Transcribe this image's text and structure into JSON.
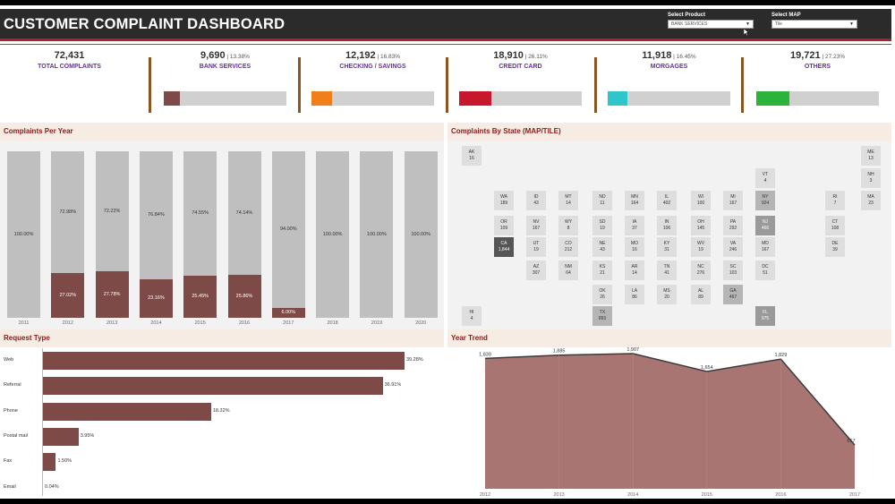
{
  "header": {
    "title": "CUSTOMER COMPLAINT DASHBOARD",
    "filters": [
      {
        "label": "Select Product",
        "value": "BANK SERVICES"
      },
      {
        "label": "Select MAP",
        "value": "Tile"
      }
    ]
  },
  "kpis": {
    "total": {
      "value": "72,431",
      "label": "TOTAL COMPLAINTS"
    },
    "items": [
      {
        "value": "9,690",
        "pct": "13.38%",
        "label": "BANK SERVICES",
        "color": "#7e4a47",
        "fill": 0.13
      },
      {
        "value": "12,192",
        "pct": "16.83%",
        "label": "CHECKING / SAVINGS",
        "color": "#f07e1a",
        "fill": 0.17
      },
      {
        "value": "18,910",
        "pct": "26.11%",
        "label": "CREDIT CARD",
        "color": "#c8172c",
        "fill": 0.26
      },
      {
        "value": "11,918",
        "pct": "16.45%",
        "label": "MORGAGES",
        "color": "#2cc6cb",
        "fill": 0.16
      },
      {
        "value": "19,721",
        "pct": "27.23%",
        "label": "OTHERS",
        "color": "#2bb33a",
        "fill": 0.27
      }
    ]
  },
  "complaints_per_year": {
    "title": "Complaints Per Year",
    "chart_data": {
      "type": "bar",
      "categories": [
        "2011",
        "2012",
        "2013",
        "2014",
        "2015",
        "2016",
        "2017",
        "2018",
        "2019",
        "2020"
      ],
      "series": [
        {
          "values": [
            0,
            27.02,
            27.78,
            23.16,
            25.45,
            25.86,
            6.0,
            0,
            0,
            0
          ]
        },
        {
          "values": [
            100,
            72.98,
            72.22,
            76.84,
            74.55,
            74.14,
            94.0,
            100,
            100,
            100
          ]
        }
      ],
      "labels_brown": [
        "",
        "27.02%",
        "27.78%",
        "23.16%",
        "25.45%",
        "25.86%",
        "6.00%",
        "",
        "",
        ""
      ],
      "labels_grey": [
        "100.00%",
        "72.98%",
        "72.22%",
        "76.84%",
        "74.55%",
        "74.14%",
        "94.00%",
        "100.00%",
        "100.00%",
        "100.00%"
      ],
      "colors": {
        "brown": "#7e4a47",
        "grey": "#bfbfbf"
      }
    }
  },
  "complaints_by_state": {
    "title": "Complaints By State (MAP/TILE)",
    "tiles": [
      {
        "st": "AK",
        "v": "16",
        "c": 0,
        "r": 0,
        "s": 0
      },
      {
        "st": "ME",
        "v": "13",
        "c": 10,
        "r": 0,
        "s": 0
      },
      {
        "st": "VT",
        "v": "4",
        "c": 9,
        "r": 1,
        "s": 0
      },
      {
        "st": "NH",
        "v": "3",
        "c": 10,
        "r": 1,
        "s": 0
      },
      {
        "st": "WA",
        "v": "189",
        "c": 1,
        "r": 2,
        "s": 0
      },
      {
        "st": "ID",
        "v": "43",
        "c": 2,
        "r": 2,
        "s": 0
      },
      {
        "st": "MT",
        "v": "14",
        "c": 3,
        "r": 2,
        "s": 0
      },
      {
        "st": "ND",
        "v": "11",
        "c": 4,
        "r": 2,
        "s": 0
      },
      {
        "st": "MN",
        "v": "164",
        "c": 5,
        "r": 2,
        "s": 0
      },
      {
        "st": "IL",
        "v": "402",
        "c": 6,
        "r": 2,
        "s": 0
      },
      {
        "st": "WI",
        "v": "100",
        "c": 7,
        "r": 2,
        "s": 0
      },
      {
        "st": "MI",
        "v": "167",
        "c": 8,
        "r": 2,
        "s": 0
      },
      {
        "st": "NY",
        "v": "924",
        "c": 9,
        "r": 2,
        "s": 1
      },
      {
        "st": "RI",
        "v": "7",
        "c": 10,
        "r": 2,
        "s": 0
      },
      {
        "st": "MA",
        "v": "23",
        "c": 11,
        "r": 2,
        "s": 0
      },
      {
        "st": "OR",
        "v": "109",
        "c": 1,
        "r": 3,
        "s": 0
      },
      {
        "st": "NV",
        "v": "167",
        "c": 2,
        "r": 3,
        "s": 0
      },
      {
        "st": "WY",
        "v": "8",
        "c": 3,
        "r": 3,
        "s": 0
      },
      {
        "st": "SD",
        "v": "19",
        "c": 4,
        "r": 3,
        "s": 0
      },
      {
        "st": "IA",
        "v": "37",
        "c": 5,
        "r": 3,
        "s": 0
      },
      {
        "st": "IN",
        "v": "106",
        "c": 6,
        "r": 3,
        "s": 0
      },
      {
        "st": "OH",
        "v": "145",
        "c": 7,
        "r": 3,
        "s": 0
      },
      {
        "st": "PA",
        "v": "292",
        "c": 8,
        "r": 3,
        "s": 0
      },
      {
        "st": "NJ",
        "v": "466",
        "c": 9,
        "r": 3,
        "s": 2
      },
      {
        "st": "CT",
        "v": "108",
        "c": 10,
        "r": 3,
        "s": 0
      },
      {
        "st": "CA",
        "v": "1,844",
        "c": 1,
        "r": 4,
        "s": 3
      },
      {
        "st": "UT",
        "v": "19",
        "c": 2,
        "r": 4,
        "s": 0
      },
      {
        "st": "CO",
        "v": "212",
        "c": 3,
        "r": 4,
        "s": 0
      },
      {
        "st": "NE",
        "v": "43",
        "c": 4,
        "r": 4,
        "s": 0
      },
      {
        "st": "MO",
        "v": "16",
        "c": 5,
        "r": 4,
        "s": 0
      },
      {
        "st": "KY",
        "v": "31",
        "c": 6,
        "r": 4,
        "s": 0
      },
      {
        "st": "WV",
        "v": "19",
        "c": 7,
        "r": 4,
        "s": 0
      },
      {
        "st": "VA",
        "v": "246",
        "c": 8,
        "r": 4,
        "s": 0
      },
      {
        "st": "MD",
        "v": "167",
        "c": 9,
        "r": 4,
        "s": 0
      },
      {
        "st": "DE",
        "v": "39",
        "c": 10,
        "r": 4,
        "s": 0
      },
      {
        "st": "AZ",
        "v": "307",
        "c": 2,
        "r": 5,
        "s": 0
      },
      {
        "st": "NM",
        "v": "64",
        "c": 3,
        "r": 5,
        "s": 0
      },
      {
        "st": "KS",
        "v": "21",
        "c": 4,
        "r": 5,
        "s": 0
      },
      {
        "st": "AR",
        "v": "14",
        "c": 5,
        "r": 5,
        "s": 0
      },
      {
        "st": "TN",
        "v": "41",
        "c": 6,
        "r": 5,
        "s": 0
      },
      {
        "st": "NC",
        "v": "276",
        "c": 7,
        "r": 5,
        "s": 0
      },
      {
        "st": "SC",
        "v": "103",
        "c": 8,
        "r": 5,
        "s": 0
      },
      {
        "st": "DC",
        "v": "51",
        "c": 9,
        "r": 5,
        "s": 0
      },
      {
        "st": "OK",
        "v": "26",
        "c": 4,
        "r": 6,
        "s": 0
      },
      {
        "st": "LA",
        "v": "86",
        "c": 5,
        "r": 6,
        "s": 0
      },
      {
        "st": "MS",
        "v": "20",
        "c": 6,
        "r": 6,
        "s": 0
      },
      {
        "st": "AL",
        "v": "89",
        "c": 7,
        "r": 6,
        "s": 0
      },
      {
        "st": "GA",
        "v": "467",
        "c": 8,
        "r": 6,
        "s": 1
      },
      {
        "st": "HI",
        "v": "4",
        "c": 0,
        "r": 7,
        "s": 0
      },
      {
        "st": "TX",
        "v": "893",
        "c": 4,
        "r": 7,
        "s": 1
      },
      {
        "st": "FL",
        "v": "975",
        "c": 9,
        "r": 7,
        "s": 2
      }
    ]
  },
  "request_type": {
    "title": "Request Type",
    "chart_data": {
      "type": "bar",
      "categories": [
        "Web",
        "Referral",
        "Phone",
        "Postal mail",
        "Fax",
        "Email"
      ],
      "values": [
        39.28,
        36.91,
        18.32,
        3.95,
        1.5,
        0.04
      ],
      "labels": [
        "39.28%",
        "36.91%",
        "18.32%",
        "3.95%",
        "1.50%",
        "0.04%"
      ],
      "color": "#7e4a47"
    }
  },
  "year_trend": {
    "title": "Year Trend",
    "chart_data": {
      "type": "area",
      "x": [
        "2012",
        "2013",
        "2014",
        "2015",
        "2016",
        "2017"
      ],
      "values": [
        1839,
        1885,
        1907,
        1654,
        1829,
        617
      ],
      "labels": [
        "1,839",
        "1,885",
        "1,907",
        "1,654",
        "1,829",
        "617"
      ],
      "ylim": [
        0,
        1907
      ],
      "color": "#7e4a47"
    }
  }
}
